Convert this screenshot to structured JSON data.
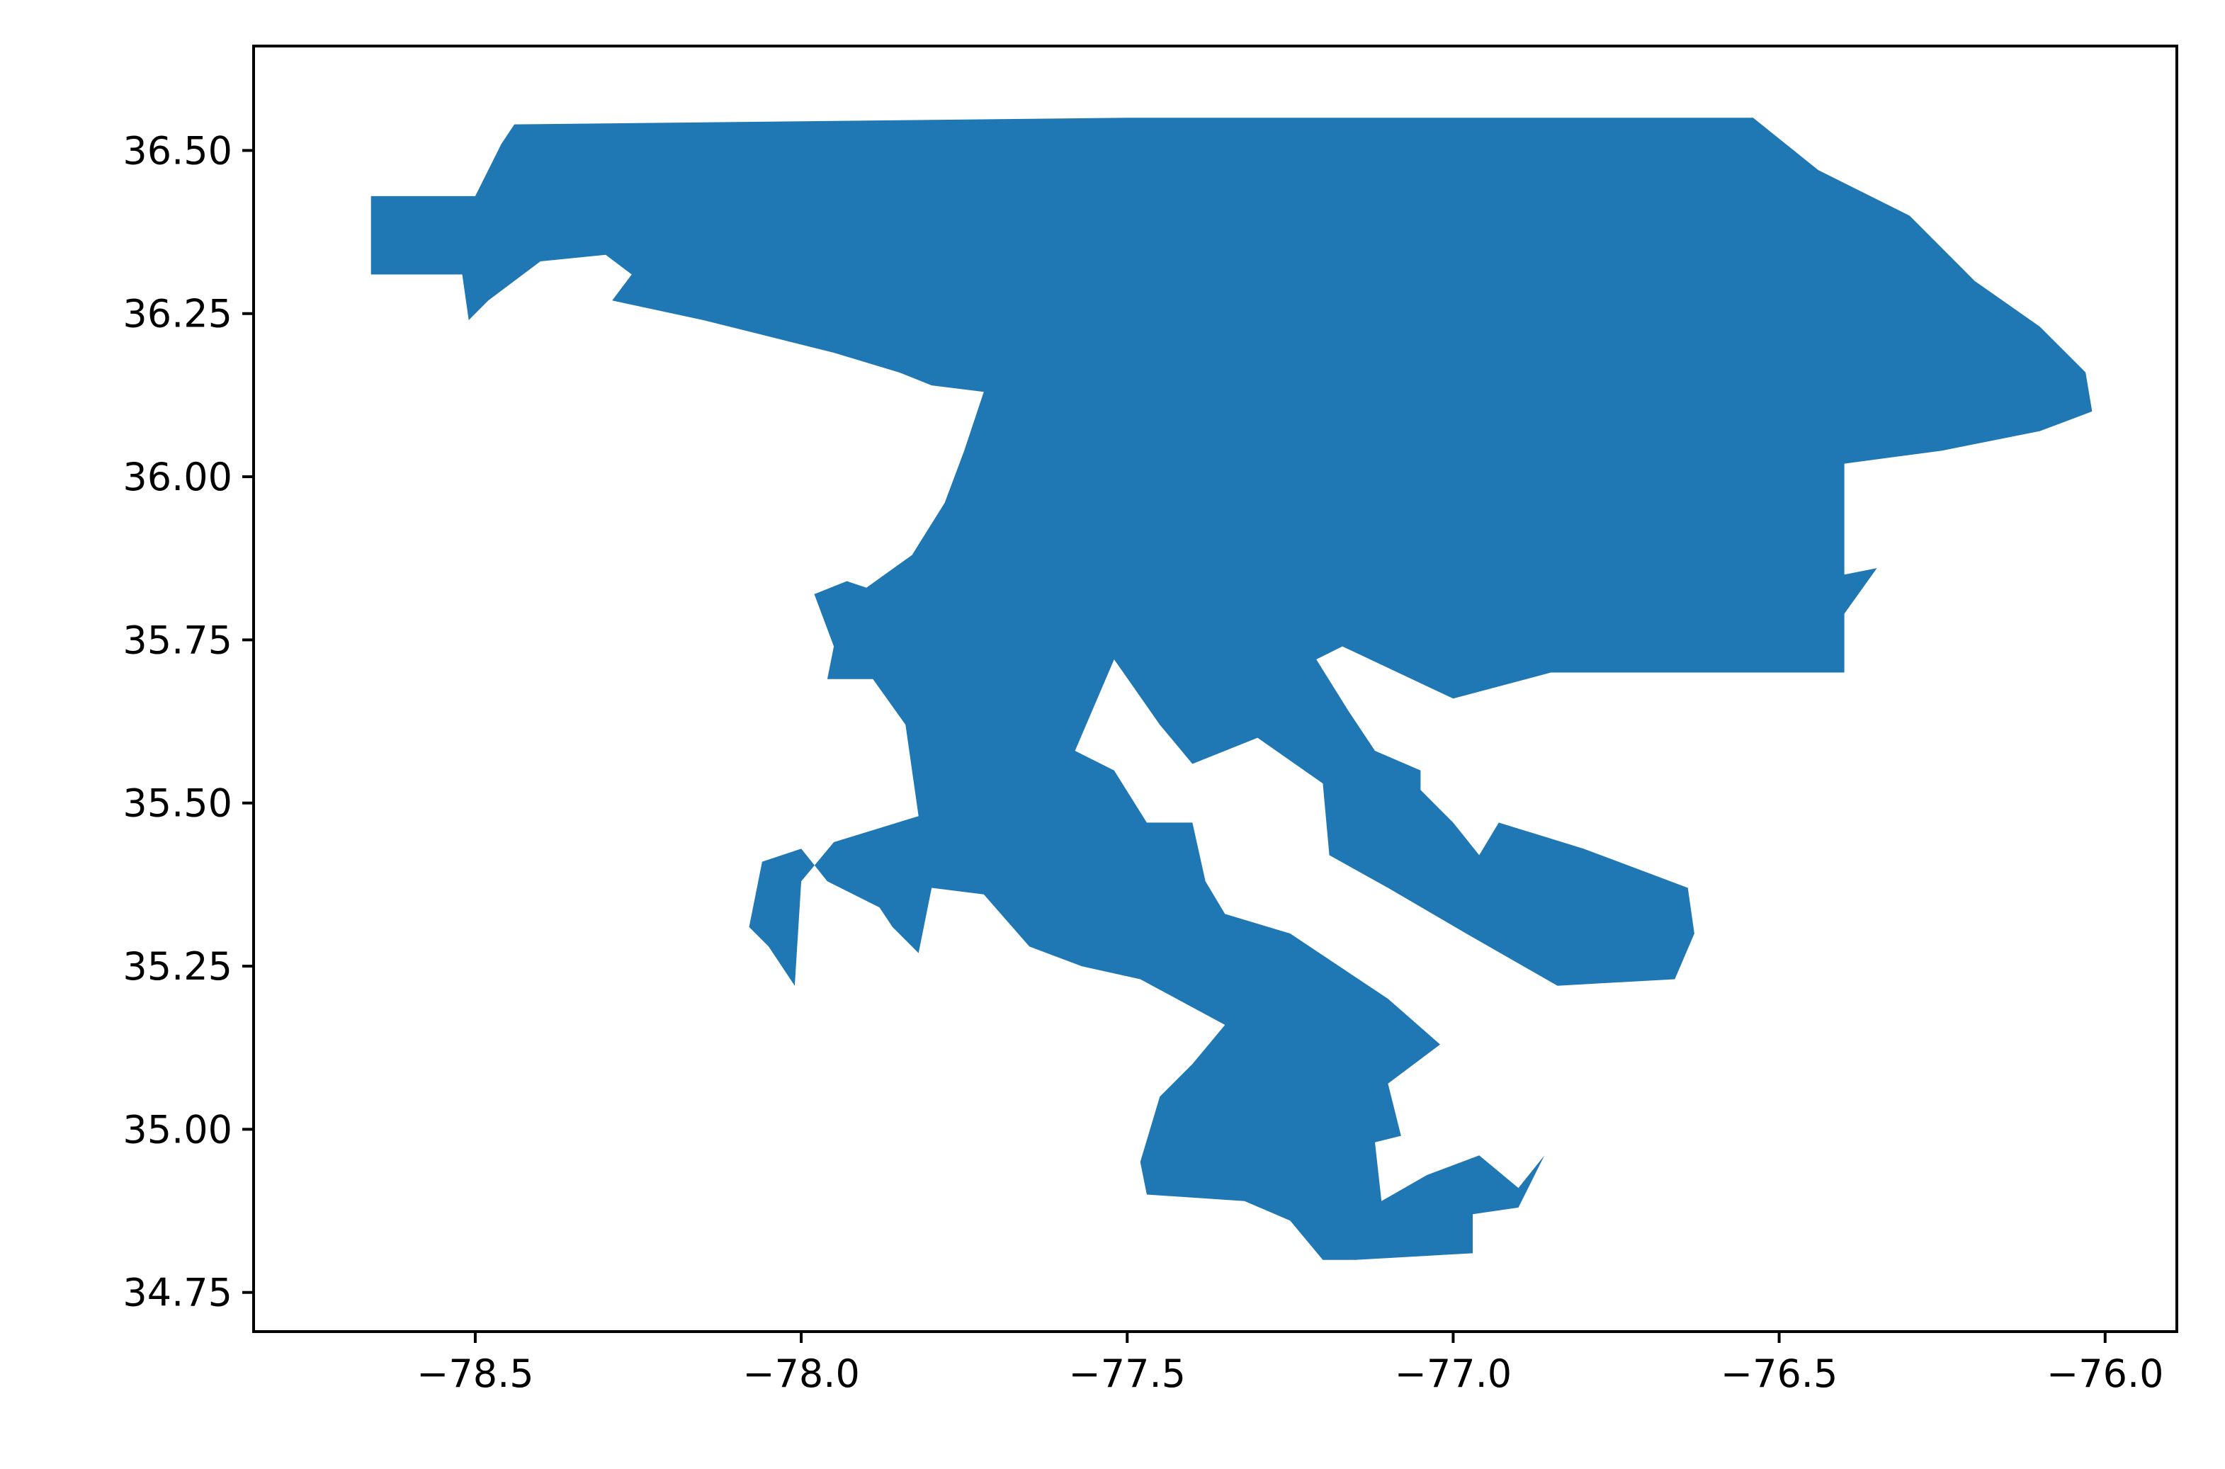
{
  "map": {
    "fill_color": "#1f77b4",
    "background_color": "#ffffff",
    "axis_color": "#000000",
    "xlim": [
      -78.84,
      -75.89
    ],
    "ylim": [
      34.69,
      36.66
    ],
    "x_ticks": [
      {
        "value": -78.5,
        "label": "−78.5"
      },
      {
        "value": -78.0,
        "label": "−78.0"
      },
      {
        "value": -77.5,
        "label": "−77.5"
      },
      {
        "value": -77.0,
        "label": "−77.0"
      },
      {
        "value": -76.5,
        "label": "−76.5"
      },
      {
        "value": -76.0,
        "label": "−76.0"
      }
    ],
    "y_ticks": [
      {
        "value": 34.75,
        "label": "34.75"
      },
      {
        "value": 35.0,
        "label": "35.00"
      },
      {
        "value": 35.25,
        "label": "35.25"
      },
      {
        "value": 35.5,
        "label": "35.50"
      },
      {
        "value": 35.75,
        "label": "35.75"
      },
      {
        "value": 36.0,
        "label": "36.00"
      },
      {
        "value": 36.25,
        "label": "36.25"
      },
      {
        "value": 36.5,
        "label": "36.50"
      }
    ],
    "region_outline": [
      [
        -78.66,
        36.43
      ],
      [
        -78.5,
        36.43
      ],
      [
        -78.46,
        36.51
      ],
      [
        -78.44,
        36.54
      ],
      [
        -77.5,
        36.55
      ],
      [
        -77.17,
        36.55
      ],
      [
        -76.54,
        36.55
      ],
      [
        -76.44,
        36.47
      ],
      [
        -76.3,
        36.4
      ],
      [
        -76.2,
        36.3
      ],
      [
        -76.1,
        36.23
      ],
      [
        -76.03,
        36.16
      ],
      [
        -76.02,
        36.1
      ],
      [
        -76.1,
        36.07
      ],
      [
        -76.25,
        36.04
      ],
      [
        -76.4,
        36.02
      ],
      [
        -76.4,
        35.85
      ],
      [
        -76.35,
        35.86
      ],
      [
        -76.4,
        35.79
      ],
      [
        -76.4,
        35.7
      ],
      [
        -76.85,
        35.7
      ],
      [
        -77.0,
        35.66
      ],
      [
        -77.17,
        35.74
      ],
      [
        -77.21,
        35.72
      ],
      [
        -77.16,
        35.64
      ],
      [
        -77.12,
        35.58
      ],
      [
        -77.05,
        35.55
      ],
      [
        -77.05,
        35.52
      ],
      [
        -77.0,
        35.47
      ],
      [
        -76.96,
        35.42
      ],
      [
        -76.93,
        35.47
      ],
      [
        -76.8,
        35.43
      ],
      [
        -76.64,
        35.37
      ],
      [
        -76.63,
        35.3
      ],
      [
        -76.66,
        35.23
      ],
      [
        -76.84,
        35.22
      ],
      [
        -76.98,
        35.3
      ],
      [
        -77.1,
        35.37
      ],
      [
        -77.19,
        35.42
      ],
      [
        -77.2,
        35.53
      ],
      [
        -77.3,
        35.6
      ],
      [
        -77.4,
        35.56
      ],
      [
        -77.45,
        35.62
      ],
      [
        -77.52,
        35.72
      ],
      [
        -77.55,
        35.65
      ],
      [
        -77.58,
        35.58
      ],
      [
        -77.52,
        35.55
      ],
      [
        -77.47,
        35.47
      ],
      [
        -77.4,
        35.47
      ],
      [
        -77.38,
        35.38
      ],
      [
        -77.35,
        35.33
      ],
      [
        -77.25,
        35.3
      ],
      [
        -77.1,
        35.2
      ],
      [
        -77.02,
        35.13
      ],
      [
        -77.1,
        35.07
      ],
      [
        -77.08,
        34.99
      ],
      [
        -77.12,
        34.98
      ],
      [
        -77.11,
        34.89
      ],
      [
        -77.04,
        34.93
      ],
      [
        -76.96,
        34.96
      ],
      [
        -76.9,
        34.91
      ],
      [
        -76.86,
        34.96
      ],
      [
        -76.9,
        34.88
      ],
      [
        -76.97,
        34.87
      ],
      [
        -76.97,
        34.81
      ],
      [
        -77.15,
        34.8
      ],
      [
        -77.2,
        34.8
      ],
      [
        -77.25,
        34.86
      ],
      [
        -77.32,
        34.89
      ],
      [
        -77.47,
        34.9
      ],
      [
        -77.48,
        34.95
      ],
      [
        -77.45,
        35.05
      ],
      [
        -77.4,
        35.1
      ],
      [
        -77.35,
        35.16
      ],
      [
        -77.48,
        35.23
      ],
      [
        -77.57,
        35.25
      ],
      [
        -77.65,
        35.28
      ],
      [
        -77.72,
        35.36
      ],
      [
        -77.8,
        35.37
      ],
      [
        -77.82,
        35.27
      ],
      [
        -77.86,
        35.31
      ],
      [
        -77.88,
        35.34
      ],
      [
        -77.96,
        35.38
      ],
      [
        -78.0,
        35.43
      ],
      [
        -78.06,
        35.41
      ],
      [
        -78.08,
        35.31
      ],
      [
        -78.05,
        35.28
      ],
      [
        -78.01,
        35.22
      ],
      [
        -78.0,
        35.38
      ],
      [
        -77.95,
        35.44
      ],
      [
        -77.82,
        35.48
      ],
      [
        -77.84,
        35.62
      ],
      [
        -77.89,
        35.69
      ],
      [
        -77.96,
        35.69
      ],
      [
        -77.95,
        35.74
      ],
      [
        -77.98,
        35.82
      ],
      [
        -77.93,
        35.84
      ],
      [
        -77.9,
        35.83
      ],
      [
        -77.83,
        35.88
      ],
      [
        -77.78,
        35.96
      ],
      [
        -77.75,
        36.04
      ],
      [
        -77.72,
        36.13
      ],
      [
        -77.8,
        36.14
      ],
      [
        -77.85,
        36.16
      ],
      [
        -77.95,
        36.19
      ],
      [
        -78.07,
        36.22
      ],
      [
        -78.15,
        36.24
      ],
      [
        -78.29,
        36.27
      ],
      [
        -78.26,
        36.31
      ],
      [
        -78.3,
        36.34
      ],
      [
        -78.4,
        36.33
      ],
      [
        -78.48,
        36.27
      ],
      [
        -78.51,
        36.24
      ],
      [
        -78.52,
        36.31
      ],
      [
        -78.66,
        36.31
      ]
    ]
  }
}
